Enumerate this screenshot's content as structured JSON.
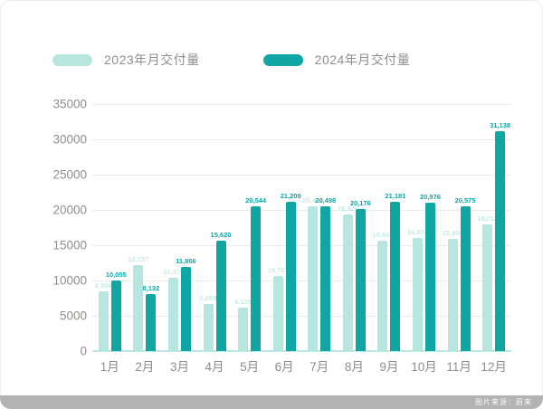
{
  "page": {
    "watermark": "图片来源：蔚来"
  },
  "legend": [
    {
      "label": "2023年月交付量",
      "color": "#b7e5e0"
    },
    {
      "label": "2024年月交付量",
      "color": "#0fa6a4"
    }
  ],
  "colors": {
    "series_2023_bar": "#b7e5e0",
    "series_2023_label": "#c6eae5",
    "series_2024_bar": "#0fa6a4",
    "series_2024_label": "#0fa6a4",
    "axis_text": "#8e8e89",
    "gridline": "#eaeae8",
    "baseline": "#b9e8e5"
  },
  "chart_data": {
    "type": "bar",
    "title": "",
    "categories": [
      "1月",
      "2月",
      "3月",
      "4月",
      "5月",
      "6月",
      "7月",
      "8月",
      "9月",
      "10月",
      "11月",
      "12月"
    ],
    "series": [
      {
        "name": "2023年月交付量",
        "color": "#b7e5e0",
        "label_color": "#c6eae5",
        "values": [
          8506,
          12157,
          10378,
          6658,
          6155,
          10707,
          20462,
          19329,
          15641,
          16074,
          15959,
          18012
        ]
      },
      {
        "name": "2024年月交付量",
        "color": "#0fa6a4",
        "label_color": "#0fa6a4",
        "values": [
          10055,
          8132,
          11866,
          15620,
          20544,
          21209,
          20498,
          20176,
          21181,
          20976,
          20575,
          31138
        ]
      }
    ],
    "ylim": [
      0,
      35000
    ],
    "ytick_step": 5000,
    "yticks": [
      0,
      5000,
      10000,
      15000,
      20000,
      25000,
      30000,
      35000
    ],
    "grid": true,
    "legend_position": "top",
    "value_labels": true
  }
}
